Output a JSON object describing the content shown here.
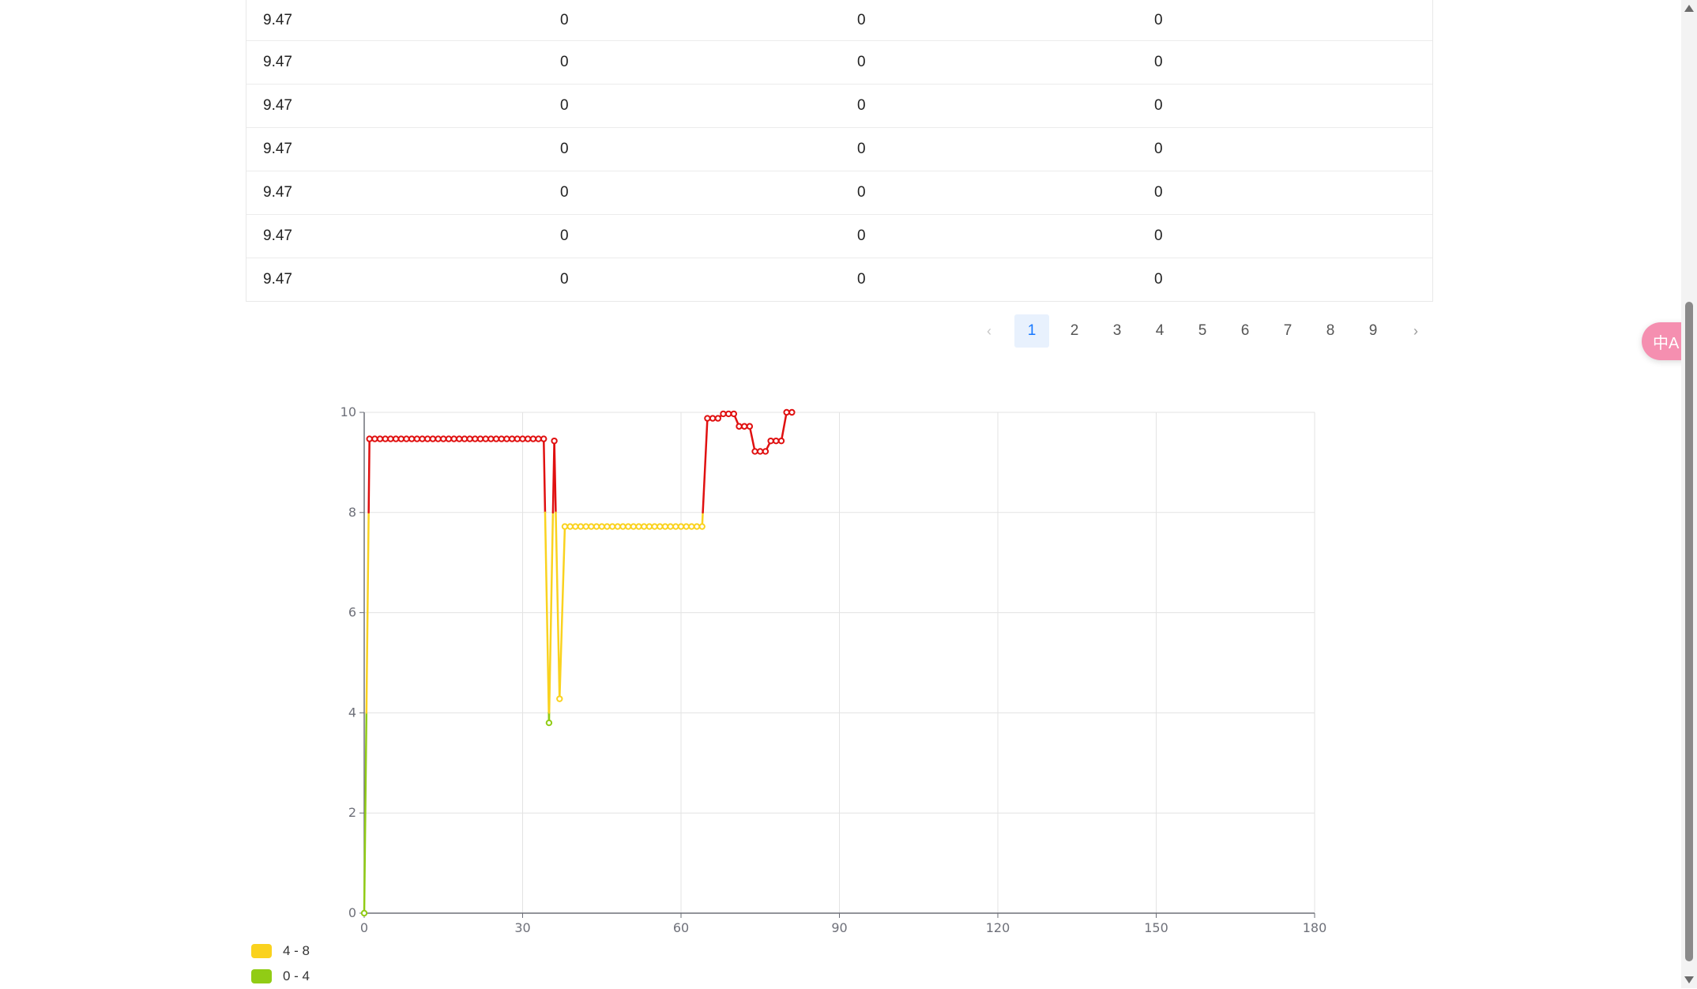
{
  "table": {
    "rows": [
      [
        "9.47",
        "0",
        "0",
        "0"
      ],
      [
        "9.47",
        "0",
        "0",
        "0"
      ],
      [
        "9.47",
        "0",
        "0",
        "0"
      ],
      [
        "9.47",
        "0",
        "0",
        "0"
      ],
      [
        "9.47",
        "0",
        "0",
        "0"
      ],
      [
        "9.47",
        "0",
        "0",
        "0"
      ],
      [
        "9.47",
        "0",
        "0",
        "0"
      ]
    ]
  },
  "pagination": {
    "prev": "‹",
    "next": "›",
    "pages": [
      "1",
      "2",
      "3",
      "4",
      "5",
      "6",
      "7",
      "8",
      "9"
    ],
    "current": "1"
  },
  "translate_button": {
    "icon": "translate-icon",
    "label": "中A"
  },
  "legend": [
    {
      "label": "4 - 8",
      "color": "#fad21e"
    },
    {
      "label": "0 - 4",
      "color": "#91cc15"
    }
  ],
  "chart_data": {
    "type": "line",
    "xlim": [
      0,
      180
    ],
    "ylim": [
      0,
      10
    ],
    "xticks": [
      0,
      30,
      60,
      90,
      120,
      150,
      180
    ],
    "yticks": [
      0,
      2,
      4,
      6,
      8,
      10
    ],
    "grid": true,
    "legend_position": "bottom-left",
    "visual_map": [
      {
        "range": [
          0,
          4
        ],
        "color": "#91cc15"
      },
      {
        "range": [
          4,
          8
        ],
        "color": "#fad21e"
      },
      {
        "range": [
          8,
          10
        ],
        "color": "#e01010"
      }
    ],
    "series": [
      {
        "x": [
          0,
          1,
          2,
          3,
          4,
          5,
          6,
          7,
          8,
          9,
          10,
          11,
          12,
          13,
          14,
          15,
          16,
          17,
          18,
          19,
          20,
          21,
          22,
          23,
          24,
          25,
          26,
          27,
          28,
          29,
          30,
          31,
          32,
          33,
          34,
          35,
          36,
          37,
          38,
          39,
          40,
          41,
          42,
          43,
          44,
          45,
          46,
          47,
          48,
          49,
          50,
          51,
          52,
          53,
          54,
          55,
          56,
          57,
          58,
          59,
          60,
          61,
          62,
          63,
          64,
          65,
          66,
          67,
          68,
          69,
          70,
          71,
          72,
          73,
          74,
          75,
          76,
          77,
          78,
          79,
          80,
          81
        ],
        "y": [
          0,
          9.47,
          9.47,
          9.47,
          9.47,
          9.47,
          9.47,
          9.47,
          9.47,
          9.47,
          9.47,
          9.47,
          9.47,
          9.47,
          9.47,
          9.47,
          9.47,
          9.47,
          9.47,
          9.47,
          9.47,
          9.47,
          9.47,
          9.47,
          9.47,
          9.47,
          9.47,
          9.47,
          9.47,
          9.47,
          9.47,
          9.47,
          9.47,
          9.47,
          9.47,
          3.8,
          9.43,
          4.28,
          7.72,
          7.72,
          7.72,
          7.72,
          7.72,
          7.72,
          7.72,
          7.72,
          7.72,
          7.72,
          7.72,
          7.72,
          7.72,
          7.72,
          7.72,
          7.72,
          7.72,
          7.72,
          7.72,
          7.72,
          7.72,
          7.72,
          7.72,
          7.72,
          7.72,
          7.72,
          7.72,
          9.88,
          9.88,
          9.88,
          9.97,
          9.97,
          9.97,
          9.72,
          9.72,
          9.72,
          9.22,
          9.22,
          9.22,
          9.43,
          9.43,
          9.43,
          10,
          10
        ]
      }
    ]
  }
}
